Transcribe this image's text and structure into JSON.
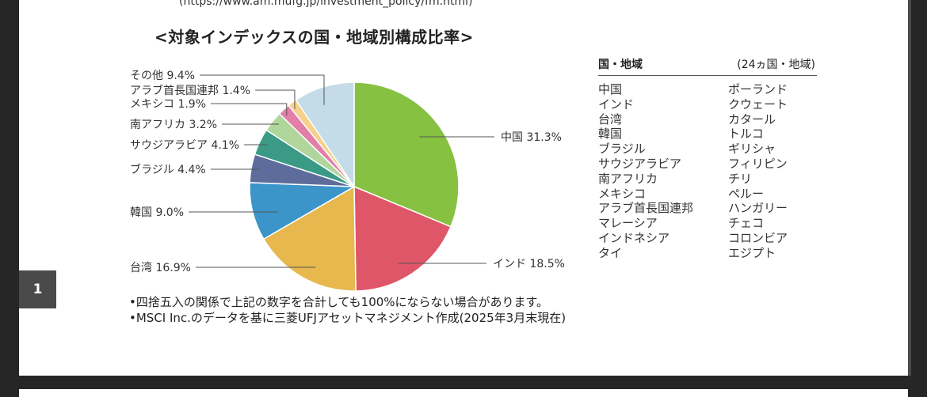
{
  "viewer": {
    "page_number": "1"
  },
  "document": {
    "url_text": "(https://www.am.mufg.jp/investment_policy/fm.html)",
    "chart_title": "<対象インデックスの国・地域別構成比率>",
    "table": {
      "header_left": "国・地域",
      "header_right": "(24ヵ国・地域)",
      "left_column": [
        "中国",
        "インド",
        "台湾",
        "韓国",
        "ブラジル",
        "サウジアラビア",
        "南アフリカ",
        "メキシコ",
        "アラブ首長国連邦",
        "マレーシア",
        "インドネシア",
        "タイ"
      ],
      "right_column": [
        "ポーランド",
        "クウェート",
        "カタール",
        "トルコ",
        "ギリシャ",
        "フィリピン",
        "チリ",
        "ペルー",
        "ハンガリー",
        "チェコ",
        "コロンビア",
        "エジプト"
      ]
    },
    "notes": [
      "•四捨五入の関係で上記の数字を合計しても100%にならない場合があります。",
      "•MSCI Inc.のデータを基に三菱UFJアセットマネジメント作成(2025年3月末現在)"
    ]
  },
  "chart_data": {
    "type": "pie",
    "title": "<対象インデックスの国・地域別構成比率>",
    "unit": "%",
    "slices": [
      {
        "label": "中国",
        "value": 31.3,
        "display": "中国 31.3%",
        "color": "#86c141"
      },
      {
        "label": "インド",
        "value": 18.5,
        "display": "インド 18.5%",
        "color": "#df5668"
      },
      {
        "label": "台湾",
        "value": 16.9,
        "display": "台湾 16.9%",
        "color": "#e6b84e"
      },
      {
        "label": "韓国",
        "value": 9.0,
        "display": "韓国 9.0%",
        "color": "#3b95c9"
      },
      {
        "label": "ブラジル",
        "value": 4.4,
        "display": "ブラジル 4.4%",
        "color": "#5e6c9c"
      },
      {
        "label": "サウジアラビア",
        "value": 4.1,
        "display": "サウジアラビア 4.1%",
        "color": "#3a9a86"
      },
      {
        "label": "南アフリカ",
        "value": 3.2,
        "display": "南アフリカ 3.2%",
        "color": "#b1d69c"
      },
      {
        "label": "メキシコ",
        "value": 1.9,
        "display": "メキシコ 1.9%",
        "color": "#e27fa9"
      },
      {
        "label": "アラブ首長国連邦",
        "value": 1.4,
        "display": "アラブ首長国連邦 1.4%",
        "color": "#f6d18c"
      },
      {
        "label": "その他",
        "value": 9.4,
        "display": "その他 9.4%",
        "color": "#c4dbe8"
      }
    ]
  }
}
